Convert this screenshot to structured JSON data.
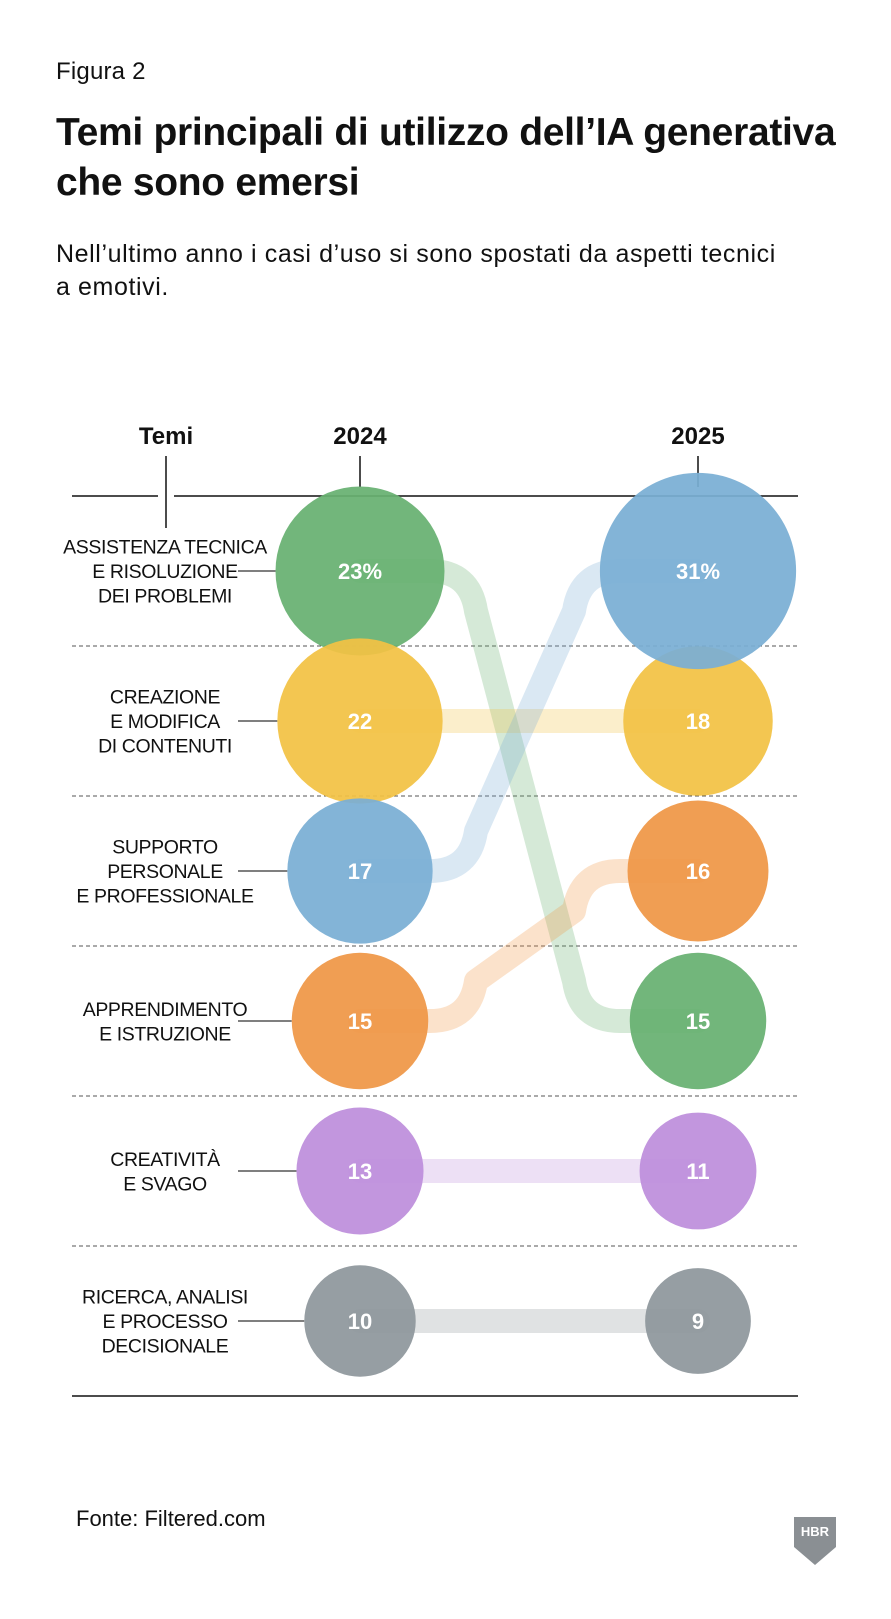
{
  "header": {
    "figure_label": "Figura 2",
    "title": "Temi principali di utilizzo dell’IA generativa che sono emersi",
    "subtitle": "Nell’ultimo anno i casi d’uso si sono spostati da aspetti tecnici a emotivi."
  },
  "footer": {
    "source": "Fonte: Filtered.com",
    "logo_text": "HBR"
  },
  "chart_data": {
    "type": "bump-bubble",
    "row_header": "Temi",
    "columns": [
      "2024",
      "2025"
    ],
    "themes": [
      {
        "name": "ASSISTENZA TECNICA E RISOLUZIONE DEI PROBLEMI",
        "lines": [
          "ASSISTENZA TECNICA",
          "E RISOLUZIONE",
          "DEI PROBLEMI"
        ],
        "color": "#67b071",
        "v2024": 23,
        "v2025": 15,
        "label2024": "23%",
        "label2025": "15"
      },
      {
        "name": "CREAZIONE E MODIFICA DI CONTENUTI",
        "lines": [
          "CREAZIONE",
          "E MODIFICA",
          "DI CONTENUTI"
        ],
        "color": "#f2c244",
        "v2024": 22,
        "v2025": 18,
        "label2024": "22",
        "label2025": "18"
      },
      {
        "name": "SUPPORTO PERSONALE E PROFESSIONALE",
        "lines": [
          "SUPPORTO",
          "PERSONALE",
          "E PROFESSIONALE"
        ],
        "color": "#7aaed4",
        "v2024": 17,
        "v2025": 31,
        "label2024": "17",
        "label2025": "31%"
      },
      {
        "name": "APPRENDIMENTO E ISTRUZIONE",
        "lines": [
          "APPRENDIMENTO",
          "E ISTRUZIONE"
        ],
        "color": "#ef9746",
        "v2024": 15,
        "v2025": 16,
        "label2024": "15",
        "label2025": "16"
      },
      {
        "name": "CREATIVITÀ E SVAGO",
        "lines": [
          "CREATIVITÀ",
          "E SVAGO"
        ],
        "color": "#bd8edb",
        "v2024": 13,
        "v2025": 11,
        "label2024": "13",
        "label2025": "11"
      },
      {
        "name": "RICERCA, ANALISI E PROCESSO DECISIONALE",
        "lines": [
          "RICERCA, ANALISI",
          "E PROCESSO",
          "DECISIONALE"
        ],
        "color": "#8e979c",
        "v2024": 10,
        "v2025": 9,
        "label2024": "10",
        "label2025": "9"
      }
    ],
    "unit": "%"
  }
}
